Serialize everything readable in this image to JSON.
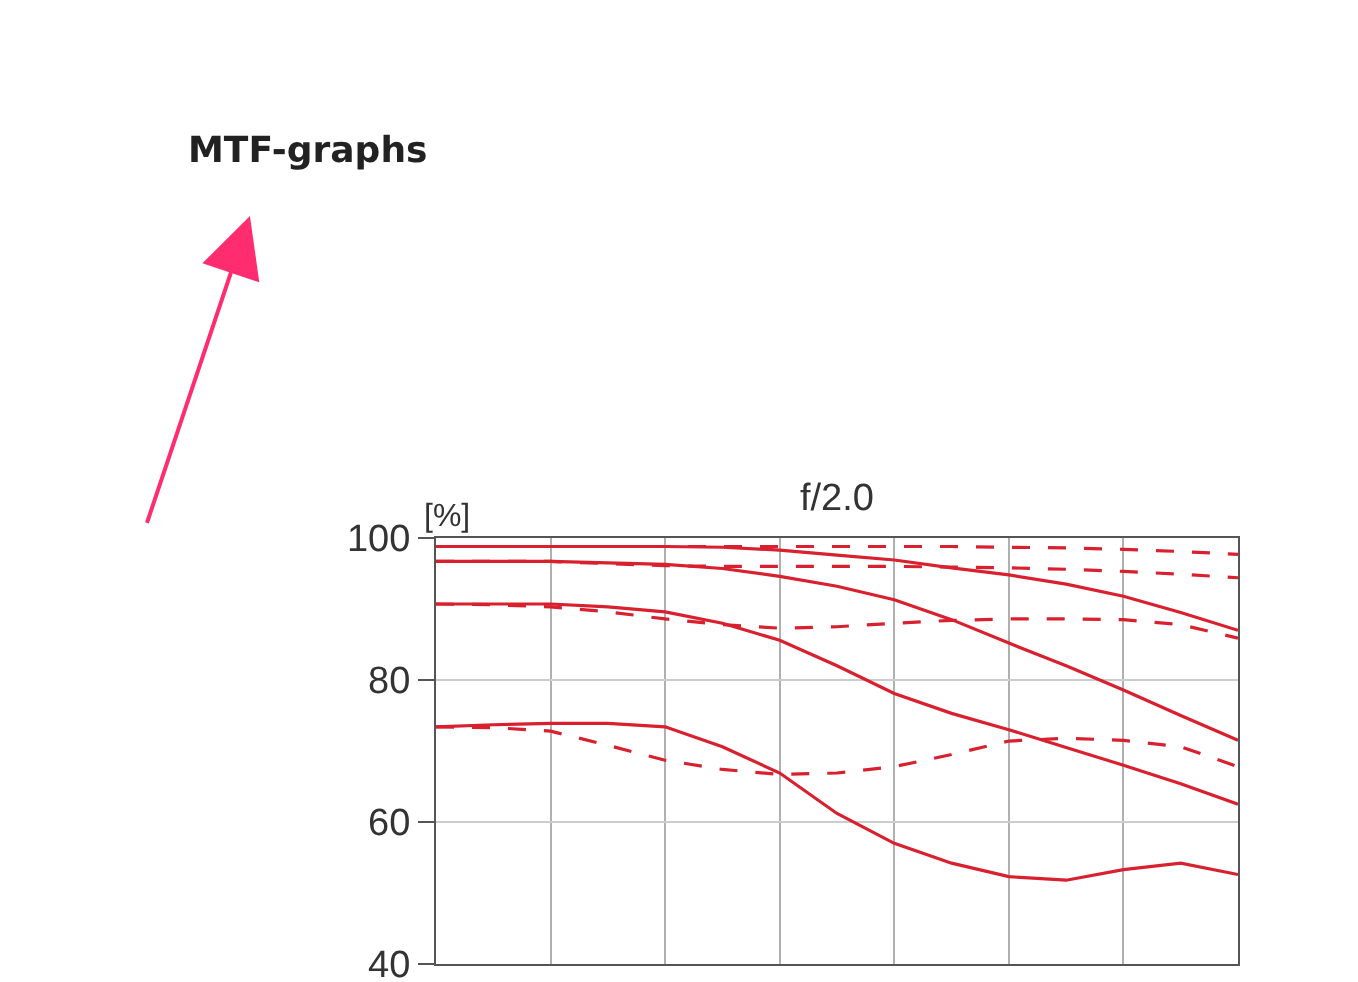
{
  "chart_data": {
    "type": "line",
    "title": "f/2.0",
    "ylabel": "[%]",
    "annotations": [
      "MTF-graphs"
    ],
    "categories": [
      null,
      null,
      null,
      null,
      null,
      null,
      null,
      null,
      null,
      null,
      null,
      null,
      null,
      null,
      null
    ],
    "ylim": [
      40,
      100
    ],
    "yticks": [
      40,
      60,
      80,
      100
    ],
    "grid": true,
    "tick_labels": "y",
    "marker": "none",
    "series": [
      {
        "color": "#d8202f",
        "line_style": "solid",
        "values": [
          98.8,
          98.8,
          98.8,
          98.8,
          98.8,
          98.7,
          98.3,
          97.6,
          96.9,
          95.8,
          94.8,
          93.5,
          91.8,
          89.5,
          87.0
        ]
      },
      {
        "color": "#d8202f",
        "line_style": "dashed",
        "values": [
          98.8,
          98.8,
          98.8,
          98.8,
          98.8,
          98.8,
          98.8,
          98.8,
          98.8,
          98.8,
          98.7,
          98.6,
          98.4,
          98.1,
          97.7
        ]
      },
      {
        "color": "#d8202f",
        "line_style": "solid",
        "values": [
          96.7,
          96.7,
          96.7,
          96.5,
          96.3,
          95.7,
          94.6,
          93.2,
          91.3,
          88.5,
          85.2,
          82.0,
          78.6,
          75.0,
          71.5
        ]
      },
      {
        "color": "#d8202f",
        "line_style": "dashed",
        "values": [
          96.7,
          96.7,
          96.7,
          96.4,
          96.1,
          96.0,
          96.0,
          96.0,
          96.0,
          95.9,
          95.8,
          95.6,
          95.3,
          94.9,
          94.4
        ]
      },
      {
        "color": "#d8202f",
        "line_style": "solid",
        "values": [
          90.7,
          90.7,
          90.7,
          90.3,
          89.6,
          88.0,
          85.6,
          82.0,
          78.1,
          75.3,
          73.0,
          70.5,
          68.0,
          65.4,
          62.5
        ]
      },
      {
        "color": "#d8202f",
        "line_style": "dashed",
        "values": [
          90.7,
          90.6,
          90.3,
          89.6,
          88.6,
          87.8,
          87.3,
          87.5,
          88.0,
          88.4,
          88.6,
          88.6,
          88.5,
          87.8,
          85.9
        ]
      },
      {
        "color": "#d8202f",
        "line_style": "solid",
        "values": [
          73.4,
          73.7,
          73.9,
          73.9,
          73.4,
          70.6,
          66.9,
          61.2,
          57.0,
          54.2,
          52.3,
          51.8,
          53.3,
          54.2,
          52.6
        ]
      },
      {
        "color": "#d8202f",
        "line_style": "dashed",
        "values": [
          73.4,
          73.3,
          72.8,
          70.8,
          68.7,
          67.4,
          66.7,
          66.9,
          67.8,
          69.5,
          71.4,
          71.8,
          71.5,
          70.6,
          67.8
        ]
      }
    ]
  }
}
